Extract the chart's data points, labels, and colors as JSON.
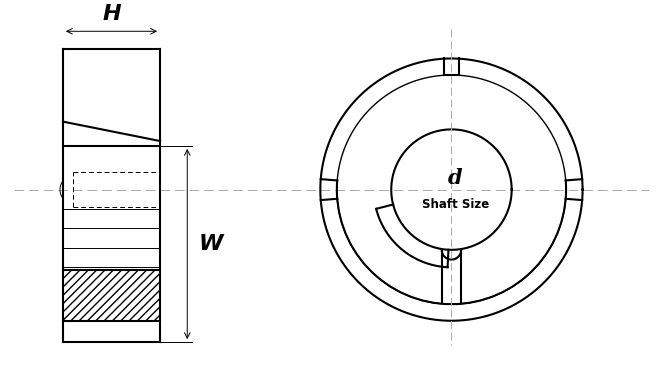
{
  "bg_color": "#ffffff",
  "line_color": "#000000",
  "dash_color": "#aaaaaa",
  "fig_width": 6.63,
  "fig_height": 3.7,
  "label_H": "H",
  "label_W": "W",
  "label_d": "d",
  "label_shaft": "Shaft Size"
}
